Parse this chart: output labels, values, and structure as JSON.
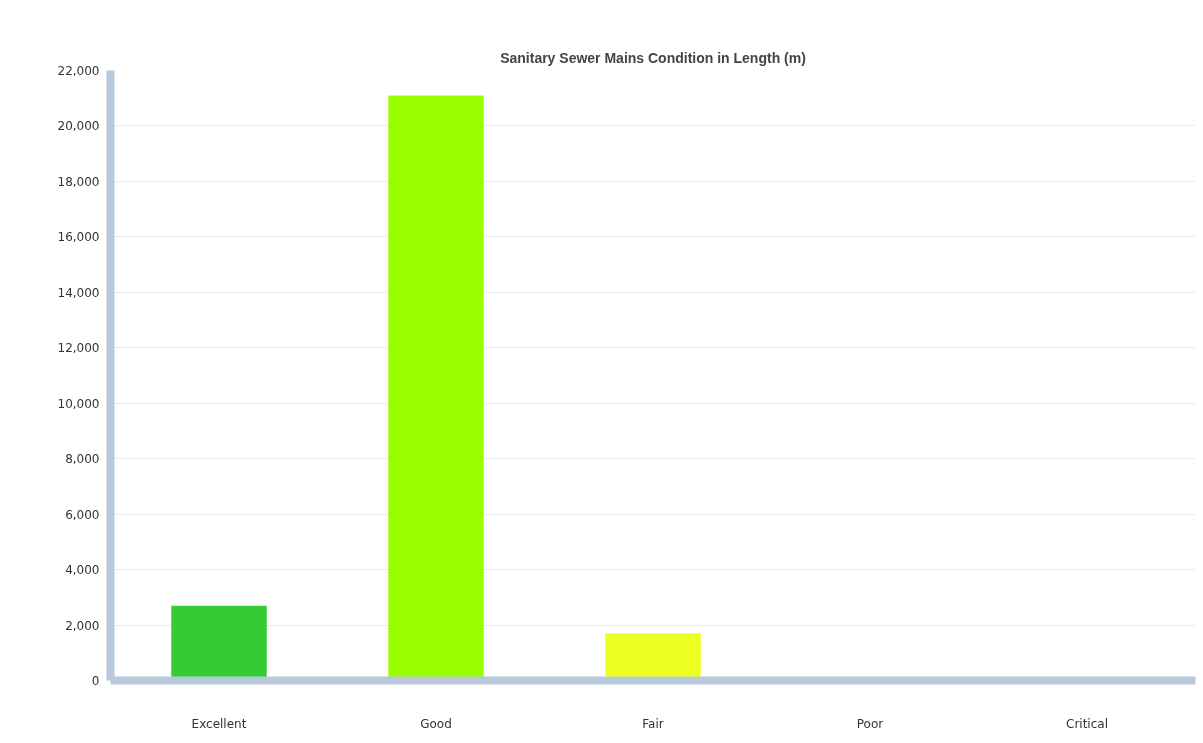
{
  "chart_data": {
    "type": "bar",
    "title": "Sanitary Sewer Mains Condition in Length (m)",
    "categories": [
      "Excellent",
      "Good",
      "Fair",
      "Poor",
      "Critical"
    ],
    "values": [
      2700,
      21100,
      1700,
      0,
      0
    ],
    "colors": [
      "#33cc33",
      "#99ff00",
      "#eeff22",
      "#ff9900",
      "#ff3300"
    ],
    "ylim": [
      0,
      22000
    ],
    "yticks": [
      {
        "value": 0,
        "label": "0"
      },
      {
        "value": 2000,
        "label": "2,000"
      },
      {
        "value": 4000,
        "label": "4,000"
      },
      {
        "value": 6000,
        "label": "6,000"
      },
      {
        "value": 8000,
        "label": "8,000"
      },
      {
        "value": 10000,
        "label": "10,000"
      },
      {
        "value": 12000,
        "label": "12,000"
      },
      {
        "value": 14000,
        "label": "14,000"
      },
      {
        "value": 16000,
        "label": "16,000"
      },
      {
        "value": 18000,
        "label": "18,000"
      },
      {
        "value": 20000,
        "label": "20,000"
      },
      {
        "value": 22000,
        "label": "22,000"
      }
    ],
    "grid": "y"
  }
}
